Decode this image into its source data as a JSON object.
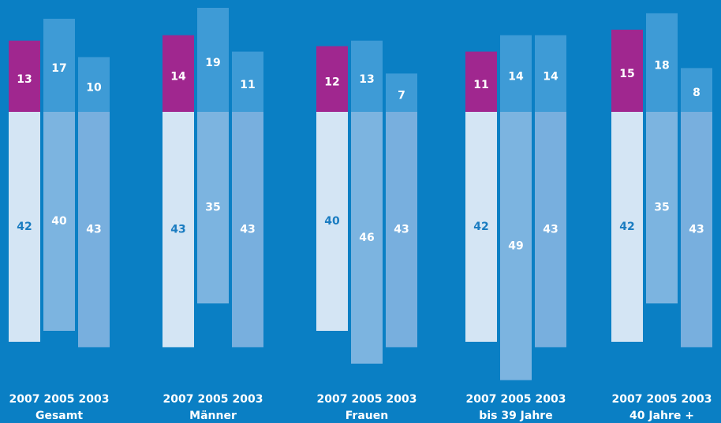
{
  "chart_data": {
    "type": "diverging-stacked-bar",
    "categories": [
      "Gesamt",
      "Männer",
      "Frauen",
      "bis 39 Jahre",
      "40 Jahre +"
    ],
    "series": [
      {
        "name": "2007",
        "top_color": "#a0278f",
        "color": "#d4e5f4",
        "label_color": "#1a7cc1",
        "top_values": [
          13,
          14,
          12,
          11,
          15
        ],
        "values": [
          42,
          43,
          40,
          42,
          42
        ]
      },
      {
        "name": "2005",
        "top_color": "#3e9bd6",
        "color": "#7cb4e0",
        "label_color": "#ffffff",
        "top_values": [
          17,
          19,
          13,
          14,
          18
        ],
        "values": [
          40,
          35,
          46,
          49,
          35
        ]
      },
      {
        "name": "2003",
        "top_color": "#3e9bd6",
        "color": "#78afde",
        "label_color": "#ffffff",
        "top_values": [
          10,
          11,
          7,
          14,
          8
        ],
        "values": [
          43,
          43,
          43,
          43,
          43
        ]
      }
    ]
  }
}
